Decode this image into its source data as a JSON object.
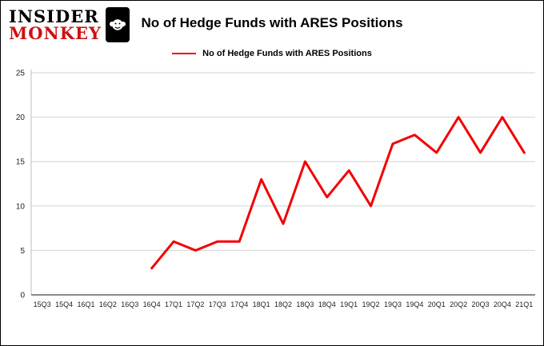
{
  "logo": {
    "line1": "INSIDER",
    "line2": "MONKEY"
  },
  "title": "No of Hedge Funds with ARES Positions",
  "legend": {
    "label": "No of Hedge Funds with ARES Positions",
    "color": "#f20000"
  },
  "chart_data": {
    "type": "line",
    "title": "No of Hedge Funds with ARES Positions",
    "categories": [
      "15Q3",
      "15Q4",
      "16Q1",
      "16Q2",
      "16Q3",
      "16Q4",
      "17Q1",
      "17Q2",
      "17Q3",
      "17Q4",
      "18Q1",
      "18Q2",
      "18Q3",
      "18Q4",
      "19Q1",
      "19Q2",
      "19Q3",
      "19Q4",
      "20Q1",
      "20Q2",
      "20Q3",
      "20Q4",
      "21Q1"
    ],
    "series": [
      {
        "name": "No of Hedge Funds with ARES Positions",
        "color": "#f20000",
        "start_index": 5,
        "values": [
          3,
          6,
          5,
          6,
          6,
          13,
          8,
          15,
          11,
          14,
          10,
          17,
          18,
          16,
          20,
          16,
          20,
          16
        ]
      }
    ],
    "xlabel": "",
    "ylabel": "",
    "ylim": [
      0,
      25
    ],
    "yticks": [
      0,
      5,
      10,
      15,
      20,
      25
    ],
    "grid": true,
    "legend_position": "top"
  }
}
